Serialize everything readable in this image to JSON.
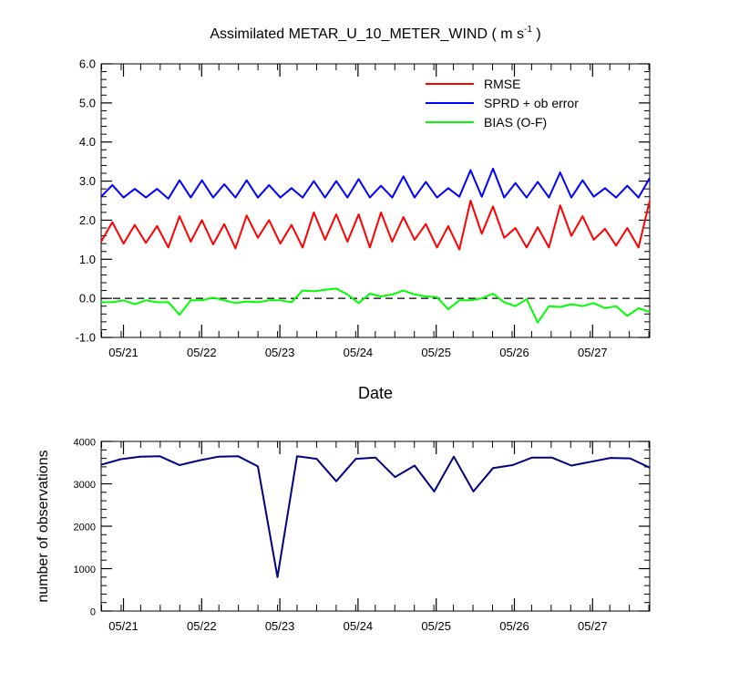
{
  "chart_data": [
    {
      "type": "line",
      "title_main": "Assimilated METAR_U_10_METER_WIND ( m s",
      "title_sup": "-1",
      "title_end": " )",
      "xlabel": "Date",
      "ylabel": "",
      "x_tick_labels": [
        "05/21",
        "05/22",
        "05/23",
        "05/24",
        "05/25",
        "05/26",
        "05/27"
      ],
      "ylim": [
        -1.0,
        6.0
      ],
      "y_tick_labels": [
        "-1.0",
        "0.0",
        "1.0",
        "2.0",
        "3.0",
        "4.0",
        "5.0",
        "6.0"
      ],
      "zero_line": true,
      "legend_position": "top-right",
      "series": [
        {
          "name": "RMSE",
          "color": "#ff0000",
          "values": [
            1.45,
            1.95,
            1.4,
            1.88,
            1.42,
            1.85,
            1.3,
            2.1,
            1.45,
            2.0,
            1.38,
            1.9,
            1.28,
            2.12,
            1.55,
            2.0,
            1.4,
            1.88,
            1.3,
            2.2,
            1.5,
            2.15,
            1.45,
            2.15,
            1.3,
            2.2,
            1.45,
            2.08,
            1.5,
            1.9,
            1.3,
            1.85,
            1.25,
            2.5,
            1.65,
            2.35,
            1.55,
            1.8,
            1.3,
            1.82,
            1.3,
            2.38,
            1.6,
            2.1,
            1.5,
            1.78,
            1.35,
            1.8,
            1.3,
            2.5
          ]
        },
        {
          "name": "SPRD + ob error",
          "color": "#0000ff",
          "values": [
            2.6,
            2.9,
            2.58,
            2.8,
            2.58,
            2.8,
            2.55,
            3.02,
            2.58,
            3.02,
            2.58,
            2.92,
            2.58,
            3.02,
            2.58,
            2.9,
            2.58,
            2.82,
            2.58,
            3.0,
            2.58,
            3.0,
            2.58,
            3.05,
            2.58,
            2.88,
            2.58,
            3.12,
            2.58,
            2.98,
            2.58,
            2.82,
            2.6,
            3.28,
            2.6,
            3.32,
            2.58,
            2.95,
            2.58,
            2.98,
            2.58,
            3.22,
            2.58,
            3.02,
            2.6,
            2.82,
            2.58,
            2.88,
            2.58,
            3.08
          ]
        },
        {
          "name": "BIAS (O-F)",
          "color": "#00ff00",
          "values": [
            -0.1,
            -0.1,
            -0.05,
            -0.15,
            -0.05,
            -0.1,
            -0.1,
            -0.42,
            -0.05,
            -0.05,
            0.02,
            -0.05,
            -0.12,
            -0.08,
            -0.1,
            -0.05,
            -0.05,
            -0.1,
            0.2,
            0.18,
            0.22,
            0.25,
            0.1,
            -0.12,
            0.12,
            0.05,
            0.1,
            0.2,
            0.1,
            0.05,
            0.03,
            -0.28,
            -0.05,
            -0.05,
            0.0,
            0.12,
            -0.1,
            -0.2,
            -0.02,
            -0.62,
            -0.2,
            -0.22,
            -0.15,
            -0.2,
            -0.12,
            -0.25,
            -0.2,
            -0.45,
            -0.25,
            -0.35
          ]
        }
      ]
    },
    {
      "type": "line",
      "title": "",
      "xlabel": "",
      "ylabel": "number of observations",
      "x_tick_labels": [
        "05/21",
        "05/22",
        "05/23",
        "05/24",
        "05/25",
        "05/26",
        "05/27"
      ],
      "ylim": [
        0,
        4000
      ],
      "y_tick_labels": [
        "0",
        "1000",
        "2000",
        "3000",
        "4000"
      ],
      "series": [
        {
          "color": "#000080",
          "values": [
            3450,
            3580,
            3640,
            3650,
            3440,
            3550,
            3640,
            3650,
            3410,
            800,
            3650,
            3590,
            3060,
            3590,
            3620,
            3160,
            3430,
            2820,
            3640,
            2820,
            3370,
            3440,
            3620,
            3620,
            3430,
            3520,
            3610,
            3600,
            3380
          ]
        }
      ]
    }
  ]
}
